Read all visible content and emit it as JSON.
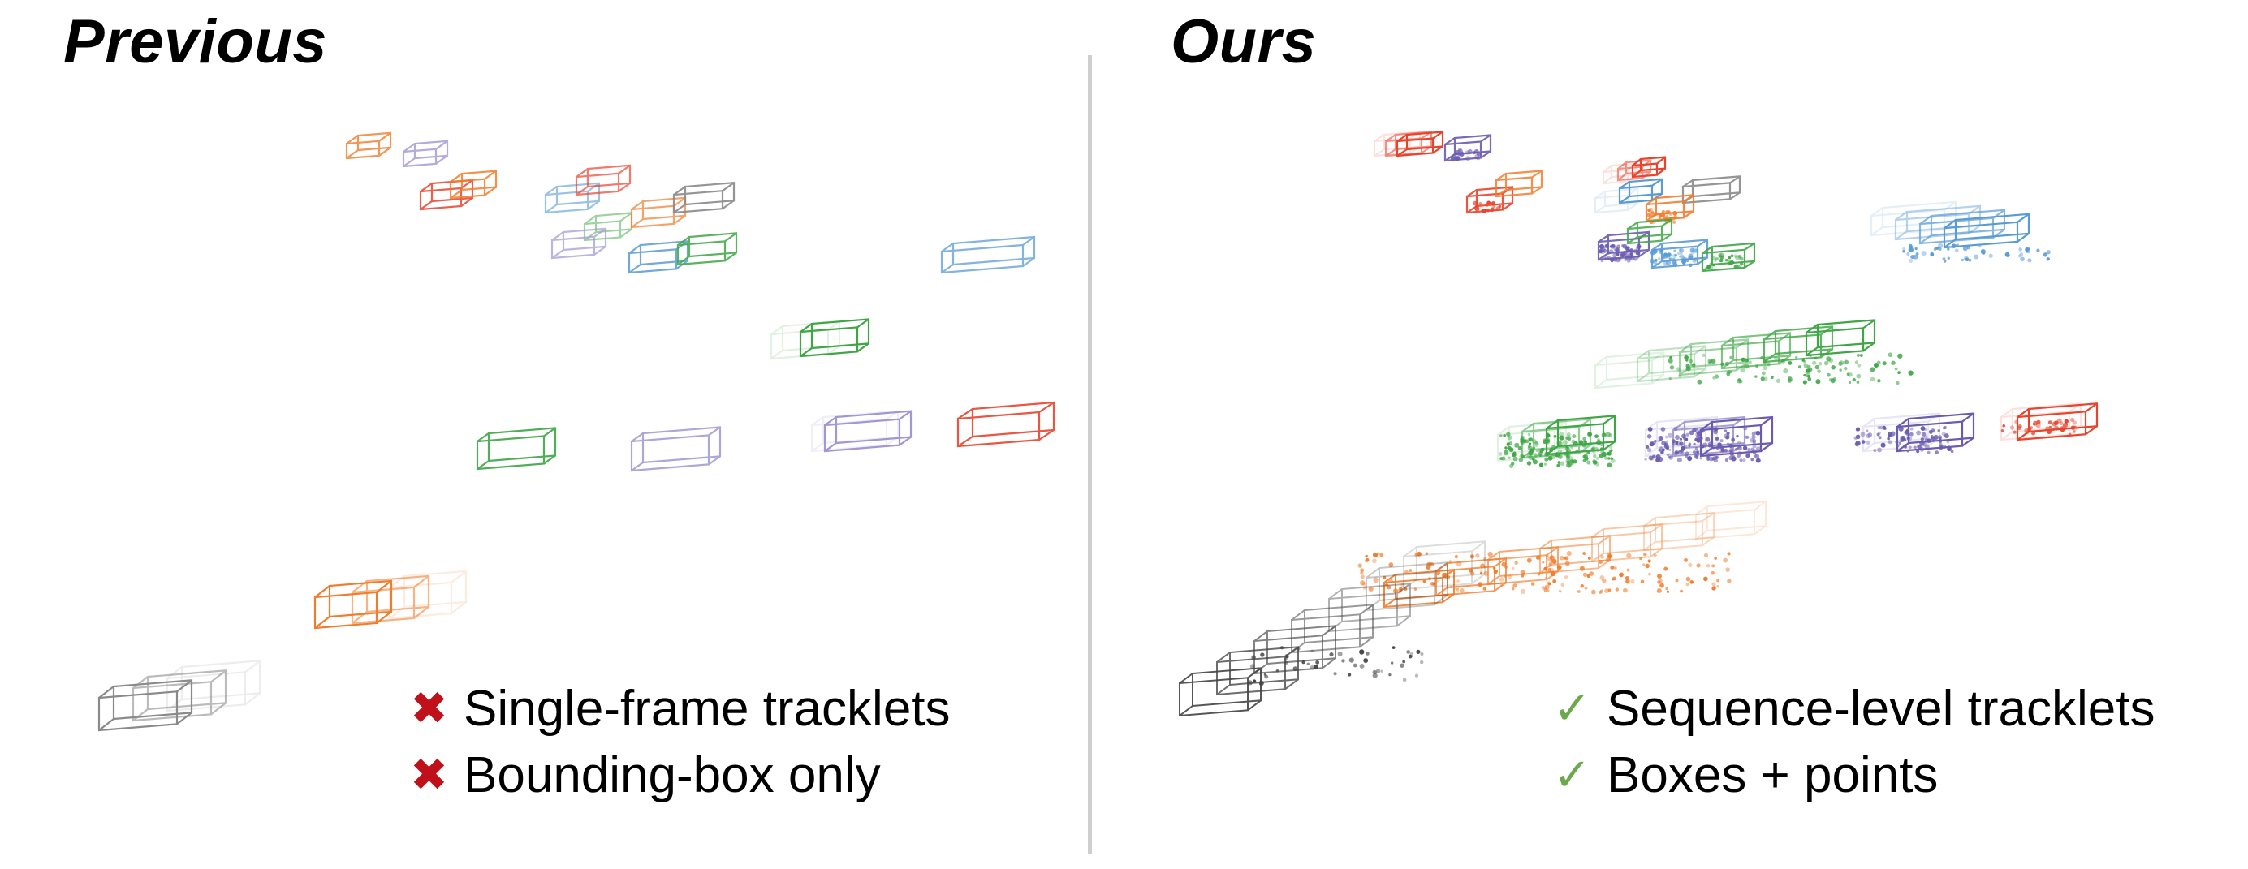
{
  "left": {
    "title": "Previous",
    "legend": [
      {
        "mark": "✖",
        "text": "Single-frame tracklets"
      },
      {
        "mark": "✖",
        "text": "Bounding-box only"
      }
    ]
  },
  "right": {
    "title": "Ours",
    "legend": [
      {
        "mark": "✓",
        "text": "Sequence-level tracklets"
      },
      {
        "mark": "✓",
        "text": "Boxes + points"
      }
    ]
  },
  "colors": {
    "cross": "#c0101a",
    "check": "#6ca84e",
    "orange": "#f07d2d",
    "red": "#e8442d",
    "purple": "#6a5bb0",
    "lavender": "#9f98d2",
    "blue": "#5a9bd4",
    "green": "#3fa646",
    "gray": "#8a8a8a",
    "black": "#444444"
  }
}
